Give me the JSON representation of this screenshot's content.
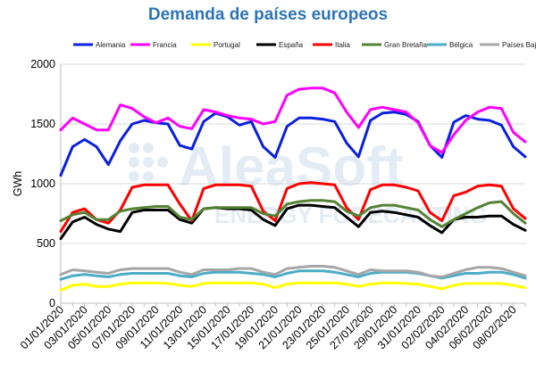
{
  "chart_data": {
    "type": "line",
    "title": "Demanda de países europeos",
    "ylabel": "GWh",
    "xlabel": "",
    "ylim": [
      0,
      2000
    ],
    "yticks": [
      0,
      500,
      1000,
      1500,
      2000
    ],
    "grid": true,
    "legend_position": "top",
    "x": [
      "01/01/2020",
      "02/01/2020",
      "03/01/2020",
      "04/01/2020",
      "05/01/2020",
      "06/01/2020",
      "07/01/2020",
      "08/01/2020",
      "09/01/2020",
      "10/01/2020",
      "11/01/2020",
      "12/01/2020",
      "13/01/2020",
      "14/01/2020",
      "15/01/2020",
      "16/01/2020",
      "17/01/2020",
      "18/01/2020",
      "19/01/2020",
      "20/01/2020",
      "21/01/2020",
      "22/01/2020",
      "23/01/2020",
      "24/01/2020",
      "25/01/2020",
      "26/01/2020",
      "27/01/2020",
      "28/01/2020",
      "29/01/2020",
      "30/01/2020",
      "31/01/2020",
      "01/02/2020",
      "02/02/2020",
      "03/02/2020",
      "04/02/2020",
      "05/02/2020",
      "06/02/2020",
      "07/02/2020",
      "08/02/2020",
      "09/02/2020"
    ],
    "xtick_labels": [
      "01/01/2020",
      "03/01/2020",
      "05/01/2020",
      "07/01/2020",
      "09/01/2020",
      "11/01/2020",
      "13/01/2020",
      "15/01/2020",
      "17/01/2020",
      "19/01/2020",
      "21/01/2020",
      "23/01/2020",
      "25/01/2020",
      "27/01/2020",
      "29/01/2020",
      "31/01/2020",
      "02/02/2020",
      "04/02/2020",
      "06/02/2020",
      "08/02/2020"
    ],
    "series": [
      {
        "name": "Alemania",
        "color": "#0a1fe0",
        "values": [
          1070,
          1310,
          1370,
          1310,
          1160,
          1360,
          1500,
          1530,
          1510,
          1500,
          1320,
          1290,
          1520,
          1590,
          1560,
          1490,
          1520,
          1310,
          1220,
          1480,
          1550,
          1550,
          1540,
          1520,
          1340,
          1225,
          1530,
          1590,
          1600,
          1580,
          1520,
          1320,
          1220,
          1515,
          1570,
          1540,
          1530,
          1490,
          1310,
          1225
        ]
      },
      {
        "name": "Francia",
        "color": "#ff00ff",
        "values": [
          1450,
          1550,
          1500,
          1450,
          1450,
          1660,
          1630,
          1560,
          1510,
          1550,
          1480,
          1460,
          1620,
          1600,
          1570,
          1550,
          1540,
          1500,
          1520,
          1740,
          1790,
          1800,
          1800,
          1760,
          1600,
          1470,
          1620,
          1640,
          1620,
          1600,
          1510,
          1320,
          1260,
          1410,
          1530,
          1600,
          1640,
          1630,
          1430,
          1350
        ]
      },
      {
        "name": "Portugal",
        "color": "#ffff00",
        "values": [
          110,
          150,
          160,
          140,
          140,
          160,
          170,
          170,
          170,
          165,
          150,
          140,
          165,
          170,
          170,
          170,
          170,
          160,
          130,
          160,
          170,
          170,
          170,
          170,
          160,
          140,
          160,
          170,
          170,
          165,
          160,
          140,
          120,
          150,
          165,
          165,
          165,
          165,
          150,
          130
        ]
      },
      {
        "name": "España",
        "color": "#000000",
        "values": [
          540,
          680,
          720,
          660,
          620,
          600,
          760,
          780,
          780,
          780,
          700,
          670,
          790,
          800,
          790,
          790,
          780,
          700,
          650,
          790,
          820,
          820,
          810,
          800,
          720,
          640,
          760,
          770,
          760,
          740,
          720,
          650,
          590,
          700,
          720,
          720,
          730,
          730,
          660,
          610
        ]
      },
      {
        "name": "Italia",
        "color": "#ff0000",
        "values": [
          600,
          760,
          790,
          700,
          670,
          780,
          970,
          990,
          990,
          990,
          830,
          690,
          960,
          990,
          990,
          990,
          980,
          770,
          690,
          960,
          1000,
          1010,
          1000,
          990,
          800,
          700,
          950,
          990,
          990,
          970,
          940,
          760,
          690,
          900,
          930,
          980,
          990,
          980,
          790,
          710
        ]
      },
      {
        "name": "Gran Bretaña",
        "color": "#548235",
        "values": [
          690,
          740,
          760,
          700,
          700,
          770,
          790,
          800,
          810,
          810,
          720,
          700,
          790,
          800,
          800,
          800,
          800,
          750,
          730,
          830,
          850,
          860,
          860,
          850,
          770,
          730,
          800,
          820,
          820,
          800,
          780,
          700,
          640,
          700,
          750,
          800,
          840,
          850,
          750,
          670
        ]
      },
      {
        "name": "Bélgica",
        "color": "#4bacc6",
        "values": [
          200,
          230,
          240,
          230,
          220,
          240,
          250,
          250,
          250,
          250,
          230,
          220,
          250,
          260,
          260,
          260,
          250,
          240,
          220,
          250,
          270,
          270,
          270,
          260,
          240,
          220,
          250,
          260,
          260,
          260,
          250,
          230,
          210,
          230,
          250,
          250,
          260,
          260,
          240,
          210
        ]
      },
      {
        "name": "Países Bajos",
        "color": "#a6a6a6",
        "values": [
          240,
          280,
          270,
          260,
          250,
          280,
          290,
          290,
          290,
          290,
          260,
          240,
          280,
          280,
          280,
          290,
          290,
          260,
          240,
          290,
          300,
          310,
          310,
          300,
          270,
          240,
          280,
          270,
          270,
          270,
          260,
          230,
          220,
          250,
          280,
          300,
          300,
          290,
          260,
          230
        ]
      }
    ]
  },
  "watermark": {
    "brand": "AleaSoft",
    "tagline": "ENERGY FORECASTING"
  }
}
